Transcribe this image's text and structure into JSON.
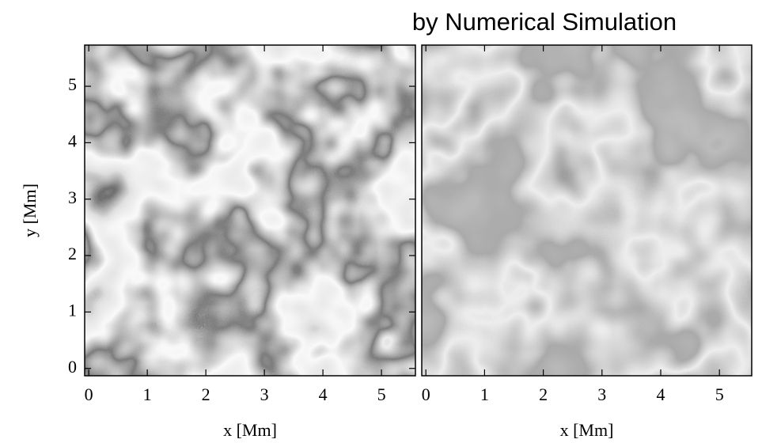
{
  "title": "by Numerical Simulation",
  "chart_data": [
    {
      "type": "image",
      "xlabel": "x [Mm]",
      "ylabel": "y [Mm]",
      "xlim": [
        -0.07,
        5.58
      ],
      "ylim": [
        -0.13,
        5.73
      ],
      "xticks": [
        0,
        1,
        2,
        3,
        4,
        5
      ],
      "yticks": [
        0,
        1,
        2,
        3,
        4,
        5
      ]
    },
    {
      "type": "image",
      "xlabel": "x [Mm]",
      "xlim": [
        -0.07,
        5.55
      ],
      "ylim": [
        -0.13,
        5.73
      ],
      "xticks": [
        0,
        1,
        2,
        3,
        4,
        5
      ]
    }
  ]
}
